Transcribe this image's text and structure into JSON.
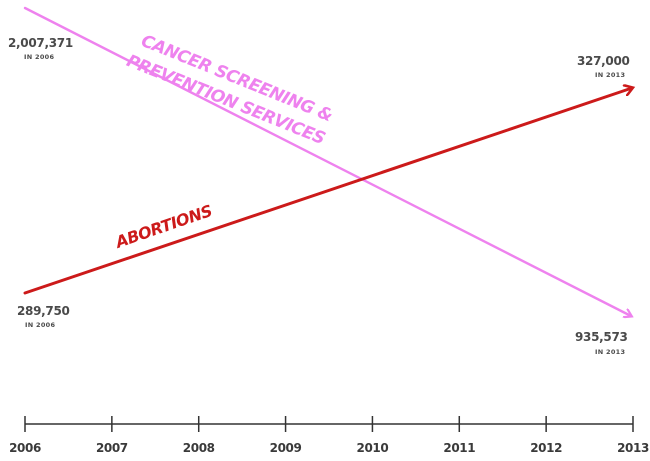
{
  "chart_data": {
    "type": "line",
    "title": "",
    "xlabel": "",
    "ylabel": "",
    "x": [
      "2006",
      "2007",
      "2008",
      "2009",
      "2010",
      "2011",
      "2012",
      "2013"
    ],
    "series": [
      {
        "name": "CANCER SCREENING & PREVENTION SERVICES",
        "label_lines": [
          "CANCER SCREENING &",
          "PREVENTION SERVICES"
        ],
        "color": "#ee82ee",
        "values": [
          2007371,
          null,
          null,
          null,
          null,
          null,
          null,
          935573
        ],
        "start_annotation": {
          "value": "2,007,371",
          "sub": "IN 2006"
        },
        "end_annotation": {
          "value": "935,573",
          "sub": "IN 2013"
        }
      },
      {
        "name": "ABORTIONS",
        "label_lines": [
          "ABORTIONS"
        ],
        "color": "#cc1a1a",
        "values": [
          289750,
          null,
          null,
          null,
          null,
          null,
          null,
          327000
        ],
        "start_annotation": {
          "value": "289,750",
          "sub": "IN 2006"
        },
        "end_annotation": {
          "value": "327,000",
          "sub": "IN 2013"
        }
      }
    ],
    "y_axis_shown": false,
    "grid": false,
    "legend": "none"
  }
}
